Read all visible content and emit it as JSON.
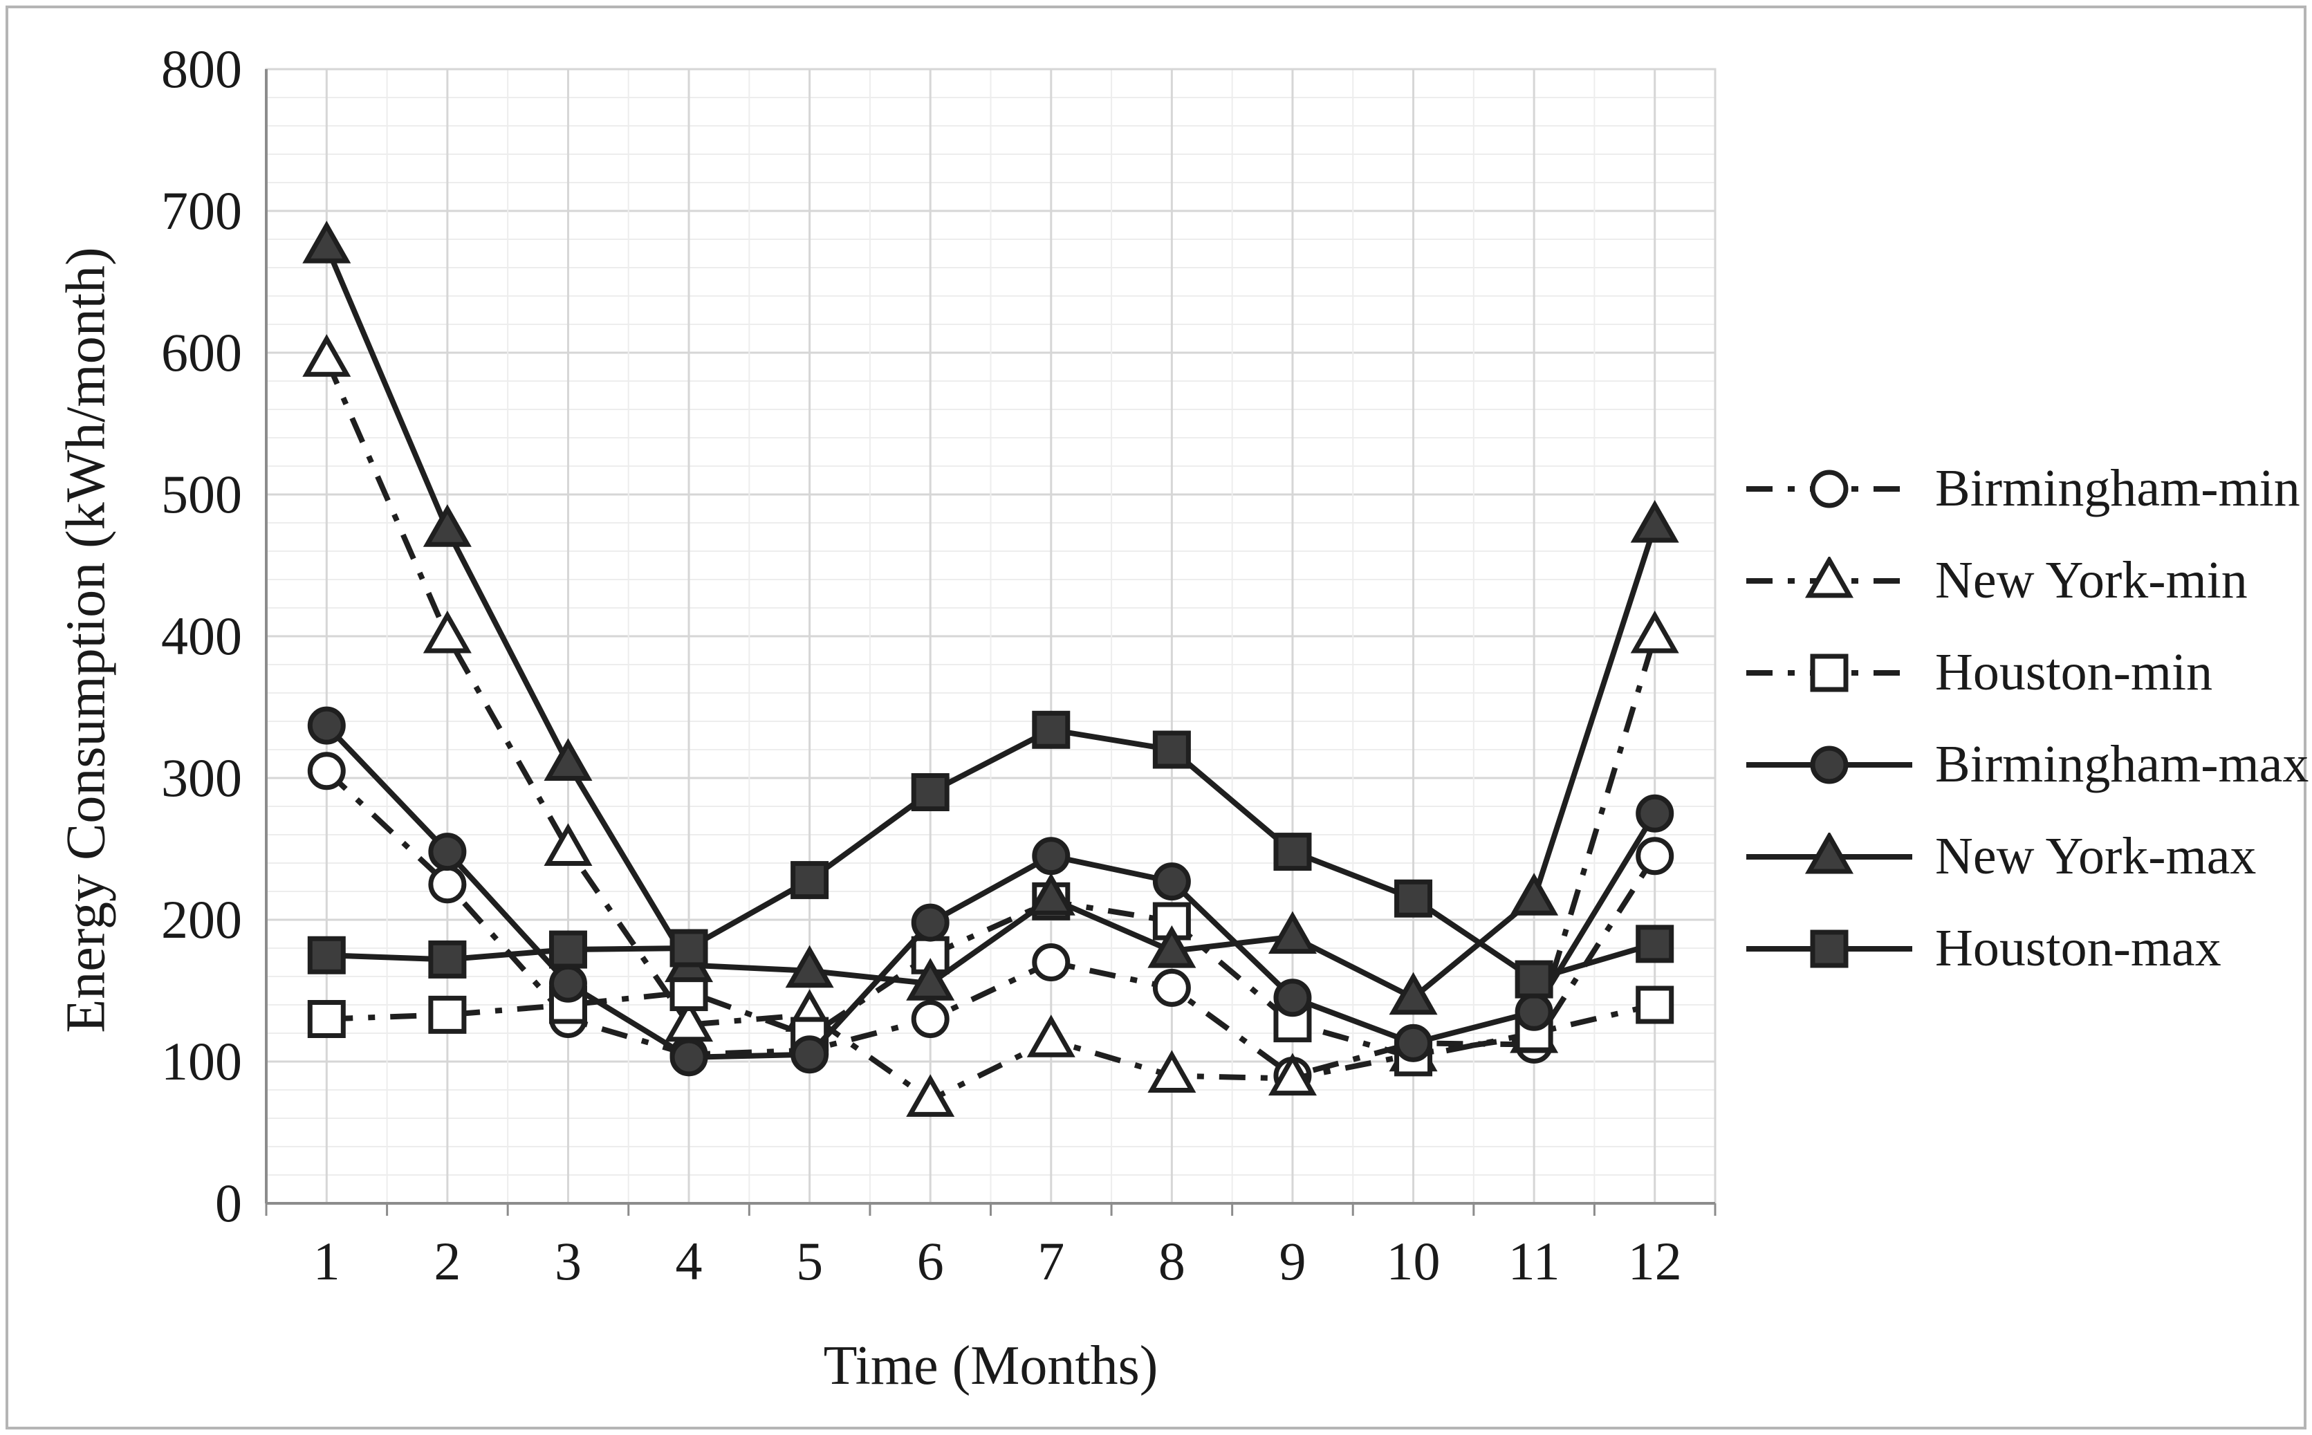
{
  "frame": {
    "border_color": "#b5b5b5",
    "background": "#ffffff"
  },
  "chart_data": {
    "type": "line",
    "title": "",
    "xlabel": "Time (Months)",
    "ylabel": "Energy Consumption (kWh/month)",
    "x": [
      1,
      2,
      3,
      4,
      5,
      6,
      7,
      8,
      9,
      10,
      11,
      12
    ],
    "x_tick_labels": [
      "1",
      "2",
      "3",
      "4",
      "5",
      "6",
      "7",
      "8",
      "9",
      "10",
      "11",
      "12"
    ],
    "ylim": [
      0,
      800
    ],
    "y_major_step": 100,
    "y_minor_step": 20,
    "y_tick_labels": [
      "0",
      "100",
      "200",
      "300",
      "400",
      "500",
      "600",
      "700",
      "800"
    ],
    "grid": true,
    "legend_position": "right",
    "series": [
      {
        "name": "Birmingham-min",
        "line": "dashed",
        "marker": "circle",
        "fill": "open",
        "values": [
          305,
          225,
          130,
          105,
          108,
          130,
          170,
          152,
          90,
          113,
          112,
          245
        ]
      },
      {
        "name": "New York-min",
        "line": "dashed",
        "marker": "triangle",
        "fill": "open",
        "values": [
          595,
          400,
          250,
          126,
          133,
          73,
          115,
          90,
          88,
          105,
          118,
          400
        ]
      },
      {
        "name": "Houston-min",
        "line": "dashed",
        "marker": "square",
        "fill": "open",
        "values": [
          130,
          133,
          140,
          149,
          118,
          175,
          213,
          199,
          127,
          103,
          120,
          140
        ]
      },
      {
        "name": "Birmingham-max",
        "line": "solid",
        "marker": "circle",
        "fill": "filled",
        "values": [
          337,
          248,
          155,
          103,
          105,
          198,
          245,
          227,
          145,
          113,
          135,
          275
        ]
      },
      {
        "name": "New York-max",
        "line": "solid",
        "marker": "triangle",
        "fill": "filled",
        "values": [
          675,
          475,
          310,
          168,
          164,
          155,
          215,
          178,
          188,
          145,
          215,
          478
        ]
      },
      {
        "name": "Houston-max",
        "line": "solid",
        "marker": "square",
        "fill": "filled",
        "values": [
          175,
          172,
          179,
          180,
          228,
          290,
          334,
          320,
          248,
          215,
          158,
          183
        ]
      }
    ],
    "colors": {
      "line": "#1f1f1f",
      "marker_fill": "#3d3d3d",
      "marker_open_fill": "#ffffff",
      "grid_minor": "#ededed",
      "grid_major": "#d6d6d6",
      "axis": "#8c8c8c",
      "text": "#1a1a1a"
    }
  }
}
